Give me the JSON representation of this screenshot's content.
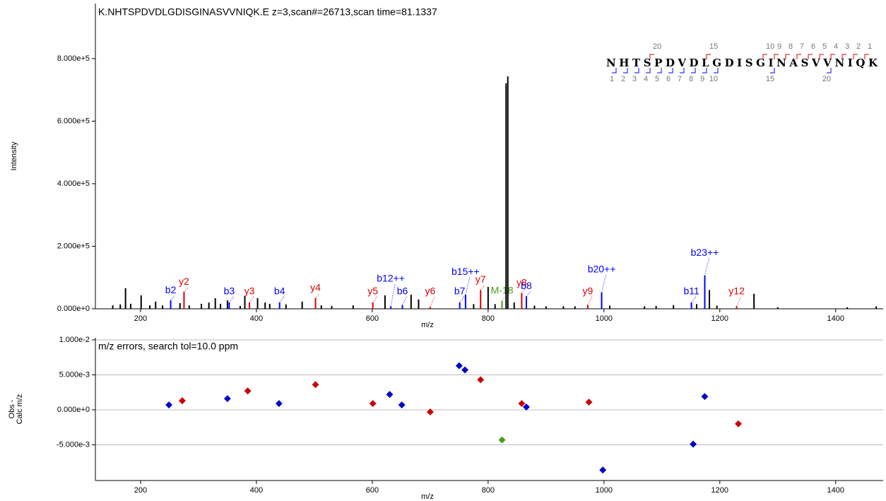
{
  "chart_data": [
    {
      "type": "bar",
      "title": "K.NHTSPDVDLGDISGINASVVNIQK.E z=3,scan#=26713,scan time=81.1337",
      "xlabel": "m/z",
      "ylabel": "Intensity",
      "xlim": [
        122,
        1482
      ],
      "ylim": [
        0,
        976000
      ],
      "xticks": [
        200,
        400,
        600,
        800,
        1000,
        1200,
        1400
      ],
      "yticks": [
        {
          "value": 0,
          "label": "0.000e+0"
        },
        {
          "value": 200000,
          "label": "2.000e+5"
        },
        {
          "value": 400000,
          "label": "4.000e+5"
        },
        {
          "value": 600000,
          "label": "6.000e+5"
        },
        {
          "value": 800000,
          "label": "8.000e+5"
        }
      ],
      "x": [
        152,
        165,
        174,
        183,
        201,
        216,
        226,
        238,
        252,
        268,
        275,
        284,
        305,
        318,
        329,
        338,
        350,
        353,
        372,
        380,
        388,
        402,
        415,
        423,
        440,
        451,
        479,
        502,
        512,
        530,
        567,
        601,
        622,
        632,
        652,
        667,
        680,
        700,
        751,
        761,
        775,
        787,
        800,
        812,
        824,
        831,
        834,
        845,
        858,
        866,
        880,
        900,
        930,
        950,
        972,
        996,
        1010,
        1070,
        1090,
        1120,
        1151,
        1160,
        1174,
        1182,
        1195,
        1229,
        1259,
        1300,
        1420,
        1470
      ],
      "values": [
        11000,
        14000,
        66000,
        16000,
        43000,
        11000,
        23000,
        11000,
        27000,
        18000,
        54000,
        11000,
        16000,
        20000,
        34000,
        16000,
        27000,
        20000,
        9000,
        41000,
        20000,
        34000,
        20000,
        16000,
        20000,
        14000,
        23000,
        34000,
        11000,
        9000,
        11000,
        20000,
        43000,
        8000,
        12000,
        45000,
        30000,
        6000,
        20000,
        45000,
        15000,
        60000,
        70000,
        15000,
        25000,
        721000,
        743000,
        20000,
        50000,
        40000,
        10000,
        8000,
        8000,
        8000,
        12000,
        52000,
        10000,
        8000,
        9000,
        12000,
        20000,
        15000,
        106000,
        60000,
        10000,
        8000,
        48000,
        5000,
        5000,
        8000
      ],
      "labels": [
        null,
        null,
        null,
        null,
        null,
        null,
        null,
        null,
        "b2",
        null,
        "y2",
        null,
        null,
        null,
        null,
        null,
        null,
        "b3",
        null,
        null,
        "y3",
        null,
        null,
        null,
        "b4",
        null,
        null,
        "y4",
        null,
        null,
        null,
        "y5",
        null,
        "b12++",
        "b6",
        null,
        null,
        "y6",
        "b7",
        "b15++",
        null,
        "y7",
        null,
        null,
        "M-18",
        null,
        null,
        null,
        "y8",
        "b8",
        null,
        null,
        null,
        null,
        "y9",
        "b20++",
        null,
        null,
        null,
        null,
        "b11",
        null,
        "b23++",
        null,
        null,
        "y12",
        null,
        null,
        null,
        null
      ],
      "colors": [
        "#000",
        "#000",
        "#000",
        "#000",
        "#000",
        "#000",
        "#000",
        "#000",
        "#0000ff",
        "#000",
        "#dd0000",
        "#000",
        "#000",
        "#000",
        "#000",
        "#000",
        "#000",
        "#0000ff",
        "#000",
        "#000",
        "#dd0000",
        "#000",
        "#000",
        "#000",
        "#0000ff",
        "#000",
        "#000",
        "#dd0000",
        "#000",
        "#000",
        "#000",
        "#dd0000",
        "#000",
        "#0000ff",
        "#0000ff",
        "#000",
        "#000",
        "#dd0000",
        "#0000ff",
        "#0000ff",
        "#000",
        "#dd0000",
        "#000",
        "#000",
        "#4a9a1a",
        "#000",
        "#000",
        "#000",
        "#dd0000",
        "#0000ff",
        "#000",
        "#000",
        "#000",
        "#000",
        "#dd0000",
        "#0000ff",
        "#000",
        "#000",
        "#000",
        "#000",
        "#0000ff",
        "#000",
        "#0000ff",
        "#000",
        "#000",
        "#dd0000",
        "#000",
        "#000",
        "#000",
        "#000"
      ],
      "sequence": "NHTSPDVDLGDISGINASVVNIQK",
      "y_ion_numbers": [
        20,
        15,
        10,
        9,
        8,
        7,
        6,
        5,
        4,
        3,
        2,
        1
      ],
      "b_ion_numbers": [
        1,
        2,
        3,
        4,
        5,
        6,
        7,
        8,
        9,
        10,
        15,
        20
      ]
    },
    {
      "type": "scatter",
      "title": "m/z errors, search tol=10.0 ppm",
      "xlabel": "m/z",
      "ylabel": [
        "Obs -",
        "Calc m/z"
      ],
      "xlim": [
        122,
        1482
      ],
      "ylim": [
        -0.0101,
        0.0103
      ],
      "xticks": [
        200,
        400,
        600,
        800,
        1000,
        1200,
        1400
      ],
      "yticks": [
        {
          "value": -0.005,
          "label": "-5.000e-3"
        },
        {
          "value": 0,
          "label": "0.000e+0"
        },
        {
          "value": 0.005,
          "label": "5.000e-3"
        },
        {
          "value": 0.01,
          "label": "1.000e-2"
        }
      ],
      "grid": true,
      "x": [
        249,
        272,
        350,
        385,
        439,
        502,
        601,
        630,
        651,
        700,
        750,
        760,
        787,
        824,
        858,
        866,
        974,
        998,
        1154,
        1174,
        1232
      ],
      "values": [
        0.0007,
        0.0013,
        0.0016,
        0.0027,
        0.0009,
        0.0036,
        0.0009,
        0.0022,
        0.0007,
        -0.0003,
        0.0063,
        0.0057,
        0.0043,
        -0.0043,
        0.0009,
        0.0004,
        0.0011,
        -0.0086,
        -0.0049,
        0.0019,
        -0.002
      ],
      "colors": [
        "#0000cc",
        "#cc0000",
        "#0000cc",
        "#cc0000",
        "#0000cc",
        "#cc0000",
        "#cc0000",
        "#0000cc",
        "#0000cc",
        "#cc0000",
        "#0000cc",
        "#0000cc",
        "#cc0000",
        "#4a9a1a",
        "#cc0000",
        "#0000cc",
        "#cc0000",
        "#0000cc",
        "#0000cc",
        "#0000cc",
        "#cc0000"
      ]
    }
  ]
}
